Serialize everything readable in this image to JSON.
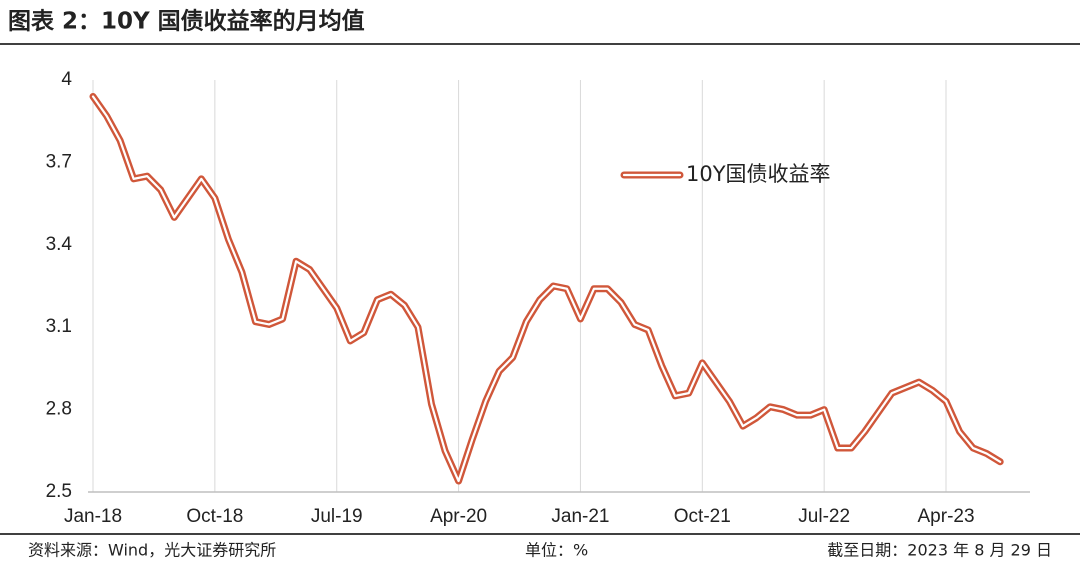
{
  "title": "图表 2：10Y 国债收益率的月均值",
  "chart_data": {
    "type": "line",
    "categories": [
      "Jan-18",
      null,
      null,
      null,
      null,
      null,
      null,
      null,
      null,
      "Oct-18",
      null,
      null,
      null,
      null,
      null,
      null,
      null,
      null,
      "Jul-19",
      null,
      null,
      null,
      null,
      null,
      null,
      null,
      null,
      "Apr-20",
      null,
      null,
      null,
      null,
      null,
      null,
      null,
      null,
      "Jan-21",
      null,
      null,
      null,
      null,
      null,
      null,
      null,
      null,
      "Oct-21",
      null,
      null,
      null,
      null,
      null,
      null,
      null,
      null,
      "Jul-22",
      null,
      null,
      null,
      null,
      null,
      null,
      null,
      null,
      "Apr-23",
      null,
      null,
      null,
      null
    ],
    "series": [
      {
        "name": "10Y国债收益率",
        "color": "#d0573a",
        "values": [
          3.94,
          3.87,
          3.78,
          3.64,
          3.65,
          3.6,
          3.5,
          3.57,
          3.64,
          3.57,
          3.42,
          3.3,
          3.12,
          3.11,
          3.13,
          3.34,
          3.31,
          3.24,
          3.17,
          3.05,
          3.08,
          3.2,
          3.22,
          3.18,
          3.1,
          2.82,
          2.65,
          2.54,
          2.69,
          2.83,
          2.94,
          2.99,
          3.12,
          3.2,
          3.25,
          3.24,
          3.13,
          3.24,
          3.24,
          3.19,
          3.11,
          3.09,
          2.96,
          2.85,
          2.86,
          2.97,
          2.9,
          2.83,
          2.74,
          2.77,
          2.81,
          2.8,
          2.78,
          2.78,
          2.8,
          2.66,
          2.66,
          2.72,
          2.79,
          2.86,
          2.88,
          2.9,
          2.87,
          2.83,
          2.72,
          2.66,
          2.64,
          2.61
        ]
      }
    ],
    "ylim": [
      2.5,
      4
    ],
    "yticks": [
      2.5,
      2.8,
      3.1,
      3.4,
      3.7,
      4
    ],
    "grid": true
  },
  "footer": {
    "source": "资料来源：Wind，光大证券研究所",
    "unit": "单位：%",
    "date": "截至日期：2023 年 8 月 29 日"
  }
}
